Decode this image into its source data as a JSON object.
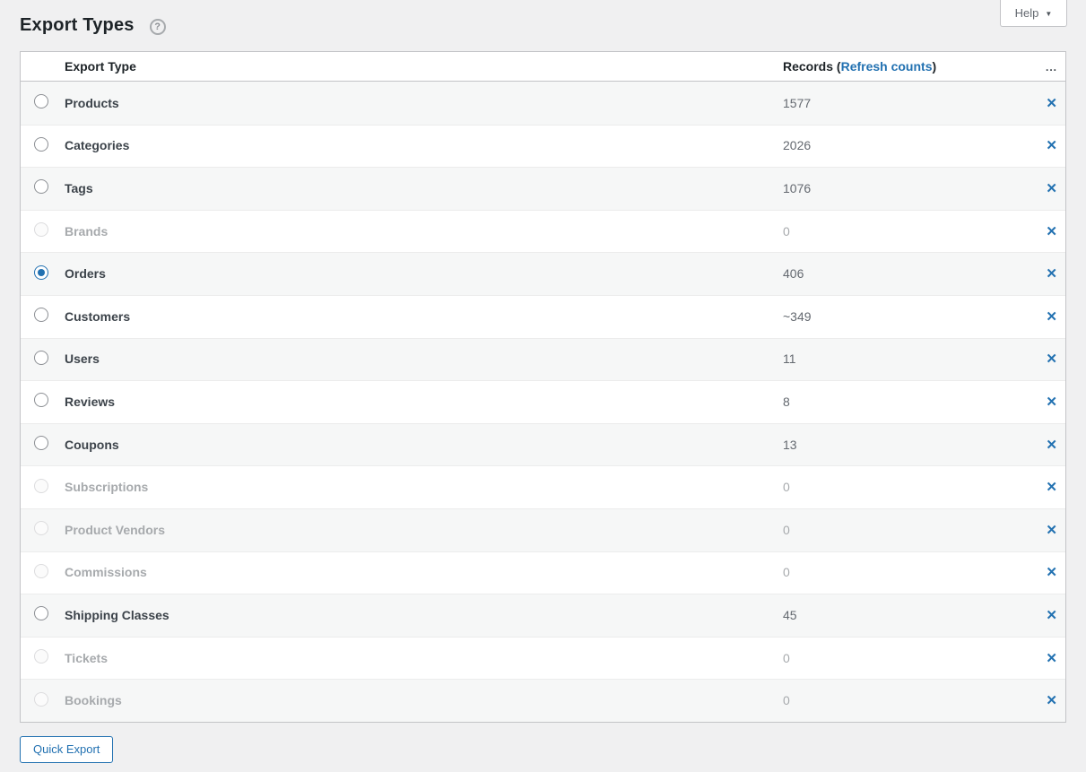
{
  "page": {
    "title": "Export Types",
    "help_tab_label": "Help",
    "quick_export_label": "Quick Export"
  },
  "icons": {
    "chevron_down": "▼",
    "help_circle": "?",
    "close": "✕",
    "ellipsis": "..."
  },
  "table": {
    "headers": {
      "type": "Export Type",
      "records_prefix": "Records (",
      "records_link": "Refresh counts",
      "records_suffix": ")",
      "actions": "..."
    },
    "rows": [
      {
        "label": "Products",
        "records": "1577",
        "selected": false,
        "disabled": false
      },
      {
        "label": "Categories",
        "records": "2026",
        "selected": false,
        "disabled": false
      },
      {
        "label": "Tags",
        "records": "1076",
        "selected": false,
        "disabled": false
      },
      {
        "label": "Brands",
        "records": "0",
        "selected": false,
        "disabled": true
      },
      {
        "label": "Orders",
        "records": "406",
        "selected": true,
        "disabled": false
      },
      {
        "label": "Customers",
        "records": "~349",
        "selected": false,
        "disabled": false
      },
      {
        "label": "Users",
        "records": "11",
        "selected": false,
        "disabled": false
      },
      {
        "label": "Reviews",
        "records": "8",
        "selected": false,
        "disabled": false
      },
      {
        "label": "Coupons",
        "records": "13",
        "selected": false,
        "disabled": false
      },
      {
        "label": "Subscriptions",
        "records": "0",
        "selected": false,
        "disabled": true
      },
      {
        "label": "Product Vendors",
        "records": "0",
        "selected": false,
        "disabled": true
      },
      {
        "label": "Commissions",
        "records": "0",
        "selected": false,
        "disabled": true
      },
      {
        "label": "Shipping Classes",
        "records": "45",
        "selected": false,
        "disabled": false
      },
      {
        "label": "Tickets",
        "records": "0",
        "selected": false,
        "disabled": true
      },
      {
        "label": "Bookings",
        "records": "0",
        "selected": false,
        "disabled": true
      }
    ]
  },
  "colors": {
    "accent_blue": "#2271b1",
    "page_background": "#f0f0f1",
    "stripe_row": "#f6f7f7",
    "table_border": "#c3c4c7",
    "label_text": "#3c434a",
    "count_text": "#646970",
    "disabled_text": "#a7aaad",
    "heading_text": "#1d2327"
  }
}
